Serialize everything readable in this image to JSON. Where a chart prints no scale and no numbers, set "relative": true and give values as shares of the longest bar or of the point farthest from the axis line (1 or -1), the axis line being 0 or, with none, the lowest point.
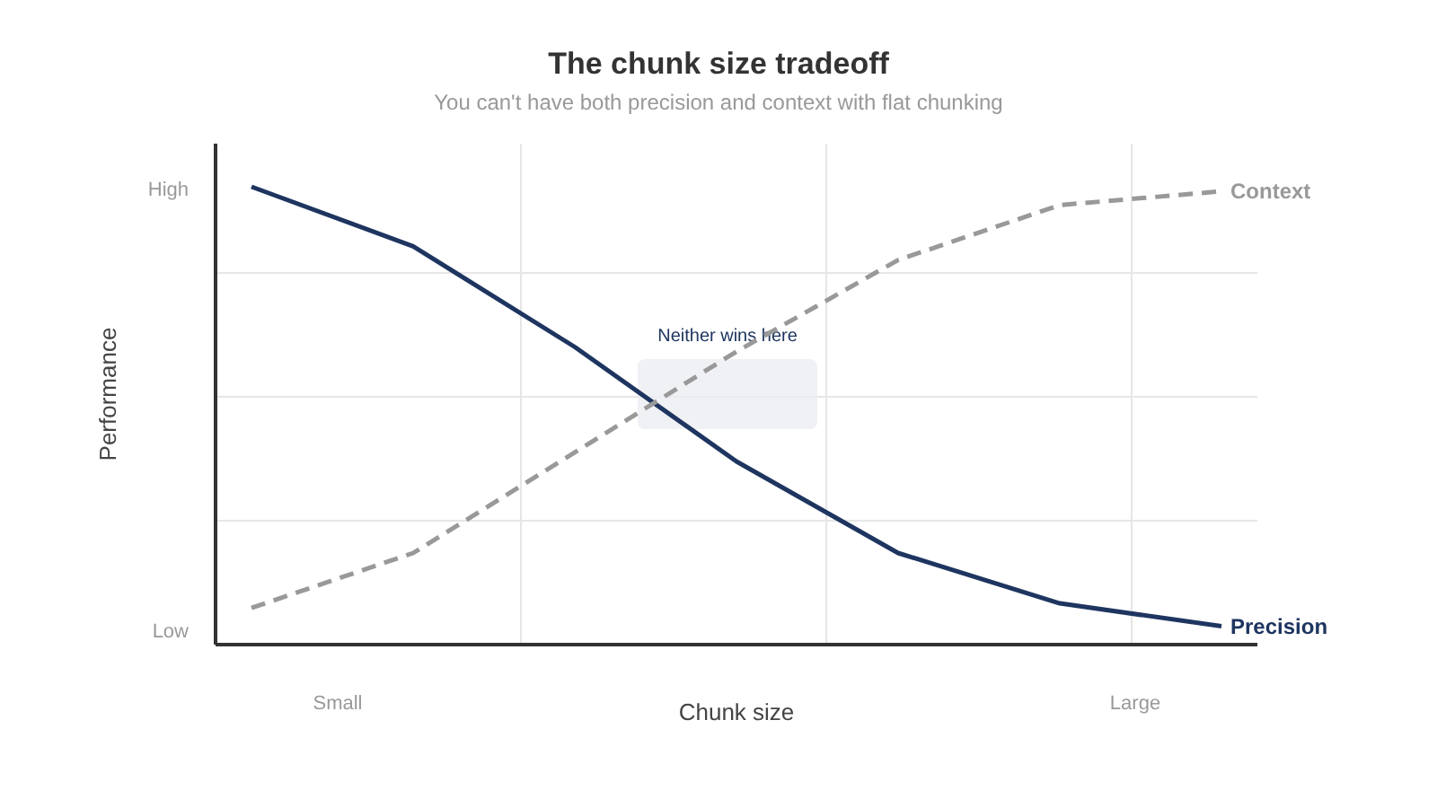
{
  "chart_data": {
    "type": "line",
    "title": "The chunk size tradeoff",
    "subtitle": "You can't have both precision and context with flat chunking",
    "xlabel": "Chunk size",
    "ylabel": "Performance",
    "categories": [
      null,
      null,
      null,
      null,
      null,
      null,
      null
    ],
    "relative": true,
    "series": [
      {
        "name": "Precision",
        "color": "#1e3560",
        "line_style": "solid",
        "values": [
          1,
          0.87,
          0.65,
          0.4,
          0.2,
          0.09,
          0.04
        ]
      },
      {
        "name": "Context",
        "color": "#999999",
        "line_style": "dashed",
        "values": [
          0.08,
          0.2,
          0.42,
          0.64,
          0.84,
          0.96,
          0.99
        ]
      }
    ],
    "annotations": [
      "Neither wins here",
      "High",
      "Low",
      "Small",
      "Large"
    ],
    "grid": true,
    "marker": "none"
  }
}
